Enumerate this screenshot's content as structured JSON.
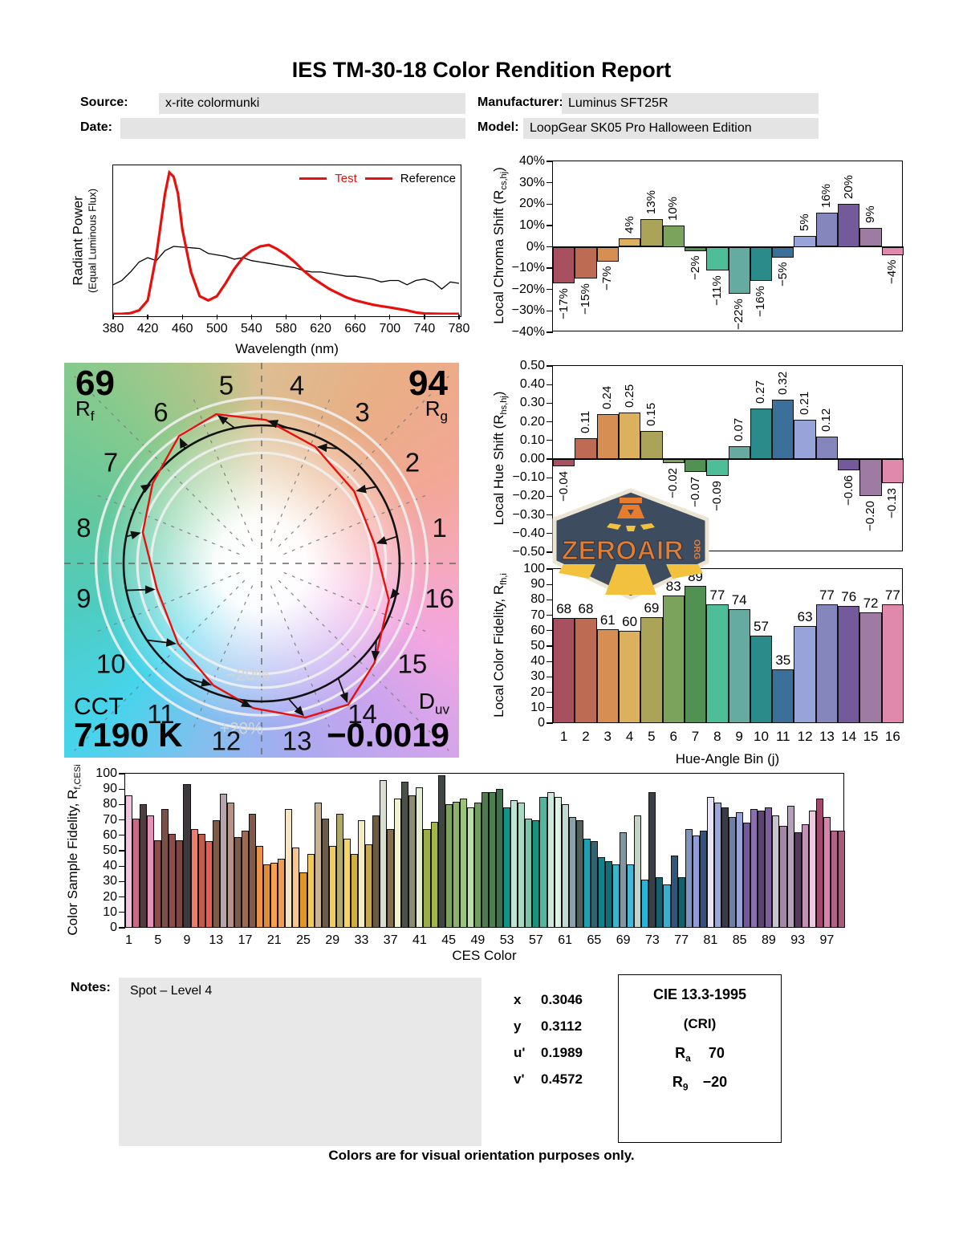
{
  "title": "IES TM-30-18 Color Rendition Report",
  "meta": {
    "source_label": "Source:",
    "source": "x-rite colormunki",
    "date_label": "Date:",
    "date": "",
    "manufacturer_label": "Manufacturer:",
    "manufacturer": "Luminus SFT25R",
    "model_label": "Model:",
    "model": "LoopGear SK05 Pro Halloween Edition"
  },
  "bin_colors": [
    "#a8505f",
    "#bd6b53",
    "#d78e52",
    "#dcb15d",
    "#aba458",
    "#7ca35b",
    "#519253",
    "#4dbe97",
    "#66aba1",
    "#2b8b8b",
    "#3b709b",
    "#97a4d9",
    "#8486bc",
    "#74599b",
    "#9d7ba3",
    "#e189ad"
  ],
  "bin_dotted": [
    0,
    1,
    2,
    4,
    5,
    9,
    11,
    15
  ],
  "chart_data": [
    {
      "id": "spd",
      "type": "line",
      "xlabel": "Wavelength (nm)",
      "ylabel": "Radiant Power",
      "ylabel2": "(Equal Luminous Flux)",
      "xlim": [
        380,
        780
      ],
      "ylim": [
        0,
        1.05
      ],
      "grid": false,
      "xticks": [
        380,
        420,
        460,
        500,
        540,
        580,
        620,
        660,
        700,
        740,
        780
      ],
      "legend_position": "top-right",
      "legend": [
        {
          "label": "Test",
          "swatch_color": "#e8100c",
          "text_color": "#e8100c"
        },
        {
          "label": "Reference",
          "swatch_color": "#e8100c",
          "text_color": "#000000"
        }
      ],
      "series": [
        {
          "name": "Test",
          "color": "#e8100c",
          "width": 3.2,
          "x": [
            380,
            390,
            400,
            410,
            420,
            430,
            440,
            445,
            450,
            455,
            460,
            470,
            480,
            490,
            500,
            510,
            520,
            530,
            540,
            550,
            560,
            570,
            580,
            590,
            600,
            610,
            620,
            630,
            640,
            650,
            660,
            670,
            680,
            690,
            700,
            710,
            720,
            730,
            740,
            750,
            760,
            770,
            780
          ],
          "y": [
            0.005,
            0.005,
            0.01,
            0.03,
            0.1,
            0.42,
            0.85,
            1.0,
            0.97,
            0.85,
            0.6,
            0.3,
            0.13,
            0.1,
            0.13,
            0.22,
            0.32,
            0.4,
            0.45,
            0.48,
            0.49,
            0.46,
            0.42,
            0.37,
            0.31,
            0.26,
            0.22,
            0.18,
            0.15,
            0.12,
            0.1,
            0.085,
            0.07,
            0.06,
            0.05,
            0.04,
            0.03,
            0.015,
            0.008,
            0.006,
            0.005,
            0.005,
            0.005
          ]
        },
        {
          "name": "Reference",
          "color": "#000000",
          "width": 1.3,
          "x": [
            380,
            390,
            400,
            410,
            420,
            430,
            440,
            450,
            460,
            470,
            480,
            490,
            500,
            510,
            520,
            530,
            540,
            550,
            560,
            570,
            580,
            590,
            600,
            610,
            620,
            630,
            640,
            650,
            660,
            670,
            680,
            690,
            700,
            710,
            720,
            730,
            740,
            750,
            760,
            770,
            780
          ],
          "y": [
            0.21,
            0.24,
            0.3,
            0.37,
            0.4,
            0.38,
            0.45,
            0.48,
            0.475,
            0.47,
            0.465,
            0.43,
            0.42,
            0.41,
            0.39,
            0.4,
            0.38,
            0.37,
            0.36,
            0.35,
            0.34,
            0.33,
            0.31,
            0.3,
            0.3,
            0.29,
            0.28,
            0.27,
            0.27,
            0.26,
            0.25,
            0.23,
            0.24,
            0.24,
            0.21,
            0.24,
            0.25,
            0.23,
            0.18,
            0.23,
            0.22
          ]
        }
      ]
    },
    {
      "id": "chroma",
      "type": "bar",
      "ylabel_prefix": "Local Chroma Shift (R",
      "ylabel_sub": "cs,hj",
      "ylabel_suffix": ")",
      "ylim": [
        -40,
        40
      ],
      "ytick_vals": [
        40,
        30,
        20,
        10,
        0,
        -10,
        -20,
        -30,
        -40
      ],
      "ytick_labels": [
        "40%",
        "30%",
        "20%",
        "10%",
        "0%",
        "−10%",
        "−20%",
        "−30%",
        "−40%"
      ],
      "categories": [
        1,
        2,
        3,
        4,
        5,
        6,
        7,
        8,
        9,
        10,
        11,
        12,
        13,
        14,
        15,
        16
      ],
      "values": [
        -17,
        -15,
        -7,
        4,
        13,
        10,
        -2,
        -11,
        -22,
        -16,
        -5,
        5,
        16,
        20,
        9,
        -4
      ],
      "labels": [
        "−17%",
        "−15%",
        "−7%",
        "4%",
        "13%",
        "10%",
        "−2%",
        "−11%",
        "−22%",
        "−16%",
        "−5%",
        "5%",
        "16%",
        "20%",
        "9%",
        "−4%"
      ]
    },
    {
      "id": "hue",
      "type": "bar",
      "ylabel_prefix": "Local Hue Shift (R",
      "ylabel_sub": "hs,hj",
      "ylabel_suffix": ")",
      "ylim": [
        -0.5,
        0.5
      ],
      "ytick_vals": [
        0.5,
        0.4,
        0.3,
        0.2,
        0.1,
        0,
        -0.1,
        -0.2,
        -0.3,
        -0.4,
        -0.5
      ],
      "ytick_labels": [
        "0.50",
        "0.40",
        "0.30",
        "0.20",
        "0.10",
        "0.00",
        "−0.10",
        "−0.20",
        "−0.30",
        "−0.40",
        "−0.50"
      ],
      "categories": [
        1,
        2,
        3,
        4,
        5,
        6,
        7,
        8,
        9,
        10,
        11,
        12,
        13,
        14,
        15,
        16
      ],
      "values": [
        -0.04,
        0.11,
        0.24,
        0.25,
        0.15,
        -0.02,
        -0.07,
        -0.09,
        0.07,
        0.27,
        0.32,
        0.21,
        0.12,
        -0.06,
        -0.2,
        -0.13
      ],
      "labels": [
        "−0.04",
        "0.11",
        "0.24",
        "0.25",
        "0.15",
        "−0.02",
        "−0.07",
        "−0.09",
        "0.07",
        "0.27",
        "0.32",
        "0.21",
        "0.12",
        "−0.06",
        "−0.20",
        "−0.13"
      ]
    },
    {
      "id": "fidelity",
      "type": "bar",
      "ylabel_prefix": "Local Color Fidelity, R",
      "ylabel_sub": "fh,i",
      "ylabel_suffix": "",
      "xlabel": "Hue-Angle Bin (j)",
      "ylim": [
        0,
        100
      ],
      "ytick_vals": [
        100,
        90,
        80,
        70,
        60,
        50,
        40,
        30,
        20,
        10,
        0
      ],
      "ytick_labels": [
        "100",
        "90",
        "80",
        "70",
        "60",
        "50",
        "40",
        "30",
        "20",
        "10",
        "0"
      ],
      "categories": [
        1,
        2,
        3,
        4,
        5,
        6,
        7,
        8,
        9,
        10,
        11,
        12,
        13,
        14,
        15,
        16
      ],
      "values": [
        68,
        68,
        61,
        60,
        69,
        83,
        89,
        77,
        74,
        57,
        35,
        63,
        77,
        76,
        72,
        77
      ],
      "labels": [
        "68",
        "68",
        "61",
        "60",
        "69",
        "83",
        "89",
        "77",
        "74",
        "57",
        "35",
        "63",
        "77",
        "76",
        "72",
        "77"
      ]
    },
    {
      "id": "ces",
      "type": "bar",
      "ylabel_prefix": "Color Sample Fidelity, R",
      "ylabel_sub": "f,CESi",
      "ylabel_suffix": "",
      "xlabel": "CES Color",
      "ylim": [
        0,
        100
      ],
      "ytick_vals": [
        100,
        90,
        80,
        70,
        60,
        50,
        40,
        30,
        20,
        10,
        0
      ],
      "ytick_labels": [
        "100",
        "90",
        "80",
        "70",
        "60",
        "50",
        "40",
        "30",
        "20",
        "10",
        "0"
      ],
      "xtick_vals": [
        1,
        5,
        9,
        13,
        17,
        21,
        25,
        29,
        33,
        37,
        41,
        45,
        49,
        53,
        57,
        61,
        65,
        69,
        73,
        77,
        81,
        85,
        89,
        93,
        97
      ],
      "values": [
        86,
        71,
        80,
        73,
        57,
        77,
        61,
        57,
        93,
        64,
        61,
        56,
        70,
        87,
        81,
        59,
        63,
        74,
        53,
        41,
        42,
        45,
        77,
        52,
        36,
        48,
        81,
        71,
        53,
        74,
        58,
        48,
        70,
        54,
        73,
        96,
        64,
        84,
        95,
        86,
        91,
        64,
        69,
        99,
        80,
        82,
        84,
        78,
        81,
        88,
        88,
        90,
        78,
        83,
        81,
        71,
        70,
        85,
        88,
        85,
        80,
        72,
        70,
        58,
        56,
        46,
        43,
        41,
        62,
        41,
        73,
        31,
        88,
        33,
        28,
        47,
        33,
        64,
        60,
        63,
        85,
        81,
        78,
        72,
        75,
        68,
        77,
        76,
        78,
        73,
        66,
        79,
        62,
        67,
        76,
        84,
        72,
        63,
        63
      ],
      "colors": [
        "#f2c4dc",
        "#c76c86",
        "#4f3d41",
        "#e790b5",
        "#8e4b48",
        "#795149",
        "#904a49",
        "#7e4545",
        "#3d393c",
        "#f07b6b",
        "#c05c48",
        "#e3614e",
        "#7d5b47",
        "#b8a4af",
        "#b69384",
        "#7b5b4c",
        "#9d6b53",
        "#84594b",
        "#eb9348",
        "#e18b35",
        "#f6a14d",
        "#f39c4f",
        "#f6e4c3",
        "#f8c58d",
        "#e19527",
        "#f1c85b",
        "#ccb492",
        "#6b5d49",
        "#f3cb56",
        "#b1aa66",
        "#f5d364",
        "#d0af3e",
        "#f5edbf",
        "#caa94d",
        "#6c5b40",
        "#daddd1",
        "#8b6c4b",
        "#eff1d0",
        "#4b5049",
        "#8b8b71",
        "#e3edd3",
        "#9bae43",
        "#a4b646",
        "#404643",
        "#7ca35d",
        "#90b16b",
        "#9dc37b",
        "#bcdcaa",
        "#709d5d",
        "#4d7b4d",
        "#507e53",
        "#40704b",
        "#109489",
        "#c0e4d3",
        "#a9d9c1",
        "#7bc5a9",
        "#169480",
        "#54b59e",
        "#cee9db",
        "#e0f1e5",
        "#c3d9d1",
        "#8ba1a9",
        "#506059",
        "#1aa1b6",
        "#2e6571",
        "#10808b",
        "#0e6f7a",
        "#3ab5cc",
        "#7f96a3",
        "#44b8d8",
        "#c2d4c5",
        "#28b4d8",
        "#3a3f45",
        "#155f6e",
        "#35b0d0",
        "#31567e",
        "#13606e",
        "#7e95c0",
        "#8f9cd6",
        "#33527e",
        "#e6e4f5",
        "#9aa6dd",
        "#393c44",
        "#6d7fa6",
        "#97a3d9",
        "#74599b",
        "#8a6fae",
        "#5d4470",
        "#7c5f9b",
        "#c8c4cc",
        "#a487a8",
        "#b3a2b8",
        "#54395c",
        "#c290b4",
        "#eec9e0",
        "#a2486c",
        "#d884ad",
        "#b06387",
        "#a85878"
      ]
    }
  ],
  "cvg": {
    "rf": "69",
    "r_label": "R",
    "rf_sub": "f",
    "rg": "94",
    "rg_sub": "g",
    "cct_label": "CCT",
    "cct_value": "7190 K",
    "duv_main": "D",
    "duv_sub": "uv",
    "duv_value": "−0.0019",
    "ring_plus": "+20%",
    "ring_minus": "−20%",
    "bin_labels": [
      "1",
      "2",
      "3",
      "4",
      "5",
      "6",
      "7",
      "8",
      "9",
      "10",
      "11",
      "12",
      "13",
      "14",
      "15",
      "16"
    ],
    "test_color": "#e8100c",
    "reference_color": "#111111"
  },
  "logo": {
    "text": "ZEROAIR",
    "org": "ORG"
  },
  "notes": {
    "label": "Notes:",
    "text": "Spot – Level 4"
  },
  "chromaticity": {
    "rows": [
      {
        "label": "x",
        "value": "0.3046"
      },
      {
        "label": "y",
        "value": "0.3112"
      },
      {
        "label": "u'",
        "value": "0.1989"
      },
      {
        "label": "v'",
        "value": "0.4572"
      }
    ]
  },
  "cri": {
    "title": "CIE 13.3-1995",
    "subtitle": "(CRI)",
    "rows": [
      {
        "label": "R",
        "sub": "a",
        "value": "70"
      },
      {
        "label": "R",
        "sub": "9",
        "value": "−20"
      }
    ]
  },
  "footer": "Colors are for visual orientation purposes only."
}
